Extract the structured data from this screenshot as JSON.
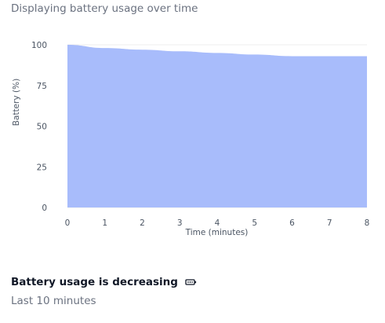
{
  "header": {
    "subtitle": "Displaying battery usage over time"
  },
  "colors": {
    "area_fill": "#a8bcfb",
    "grid": "#eeeeee",
    "text_muted": "#6b7280",
    "text_strong": "#111827"
  },
  "chart_data": {
    "type": "area",
    "title": "",
    "xlabel": "Time (minutes)",
    "ylabel": "Battery (%)",
    "x": [
      0,
      1,
      2,
      3,
      4,
      5,
      6,
      7,
      8
    ],
    "series": [
      {
        "name": "Battery (%)",
        "values": [
          100,
          98,
          97,
          96,
          95,
          94,
          93,
          93,
          93
        ]
      }
    ],
    "xlim": [
      0,
      8
    ],
    "ylim": [
      0,
      100
    ],
    "xticks": [
      "0",
      "1",
      "2",
      "3",
      "4",
      "5",
      "6",
      "7",
      "8"
    ],
    "yticks": [
      "0",
      "25",
      "50",
      "75",
      "100"
    ],
    "grid": true,
    "legend": "none"
  },
  "footer": {
    "title": "Battery usage is decreasing",
    "icon": "battery-icon",
    "subtitle": "Last 10 minutes"
  }
}
